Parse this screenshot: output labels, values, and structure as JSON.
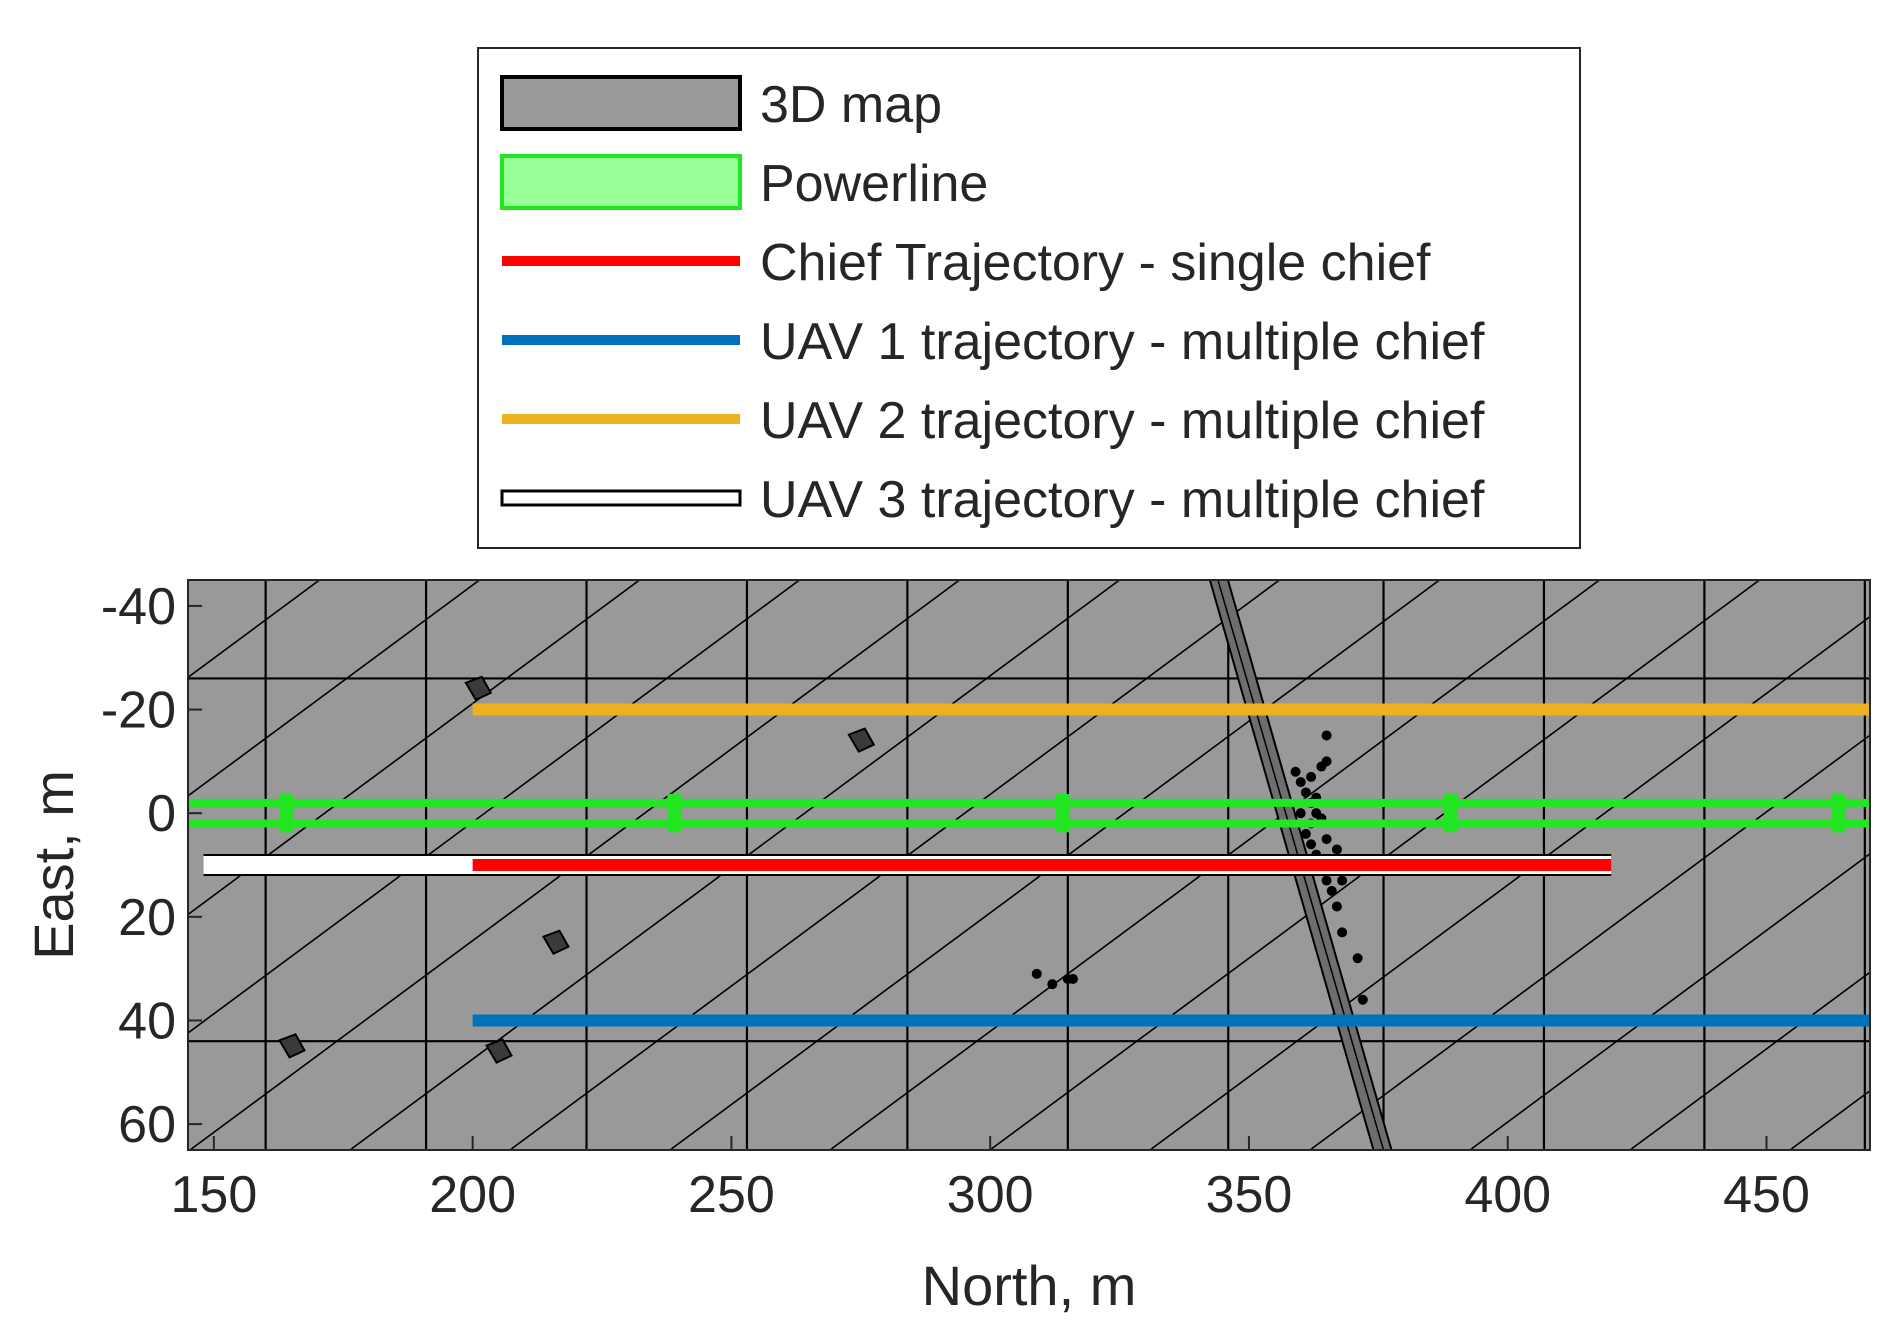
{
  "chart_data": {
    "type": "line",
    "title": "",
    "xlabel": "North, m",
    "ylabel": "East, m",
    "xlim": [
      145,
      470
    ],
    "ylim": [
      -45,
      65
    ],
    "y_reversed": true,
    "grid": false,
    "legend_position": "top-center, outside plot",
    "x_ticks": [
      "150",
      "200",
      "250",
      "300",
      "350",
      "400",
      "450"
    ],
    "y_ticks": [
      "-40",
      "-20",
      "0",
      "20",
      "40",
      "60"
    ],
    "x_tick_values": [
      150,
      200,
      250,
      300,
      350,
      400,
      450
    ],
    "y_tick_values": [
      -40,
      -20,
      0,
      20,
      40,
      60
    ],
    "colors": {
      "map_fill": "#999999",
      "map_edge": "#000000",
      "powerline": "#22e622",
      "powerline_fill": "#99ff99",
      "chief": "#ff0000",
      "uav1": "#0072bd",
      "uav2": "#edb120",
      "uav3": "#ffffff"
    },
    "legend": [
      {
        "label": "3D map",
        "kind": "patch",
        "color": "#999999",
        "edge": "#000000"
      },
      {
        "label": "Powerline",
        "kind": "patch",
        "color": "#99ff99",
        "edge": "#22e622"
      },
      {
        "label": "Chief Trajectory - single chief",
        "kind": "line",
        "color": "#ff0000"
      },
      {
        "label": "UAV 1 trajectory - multiple chief",
        "kind": "line",
        "color": "#0072bd"
      },
      {
        "label": "UAV 2 trajectory - multiple chief",
        "kind": "line",
        "color": "#edb120"
      },
      {
        "label": "UAV 3 trajectory - multiple chief",
        "kind": "outlined-line",
        "color": "#ffffff",
        "edge": "#000000"
      }
    ],
    "series": [
      {
        "name": "UAV 3 trajectory - multiple chief",
        "x": [
          148,
          420
        ],
        "y": [
          10,
          10
        ]
      },
      {
        "name": "Chief Trajectory - single chief",
        "x": [
          200,
          420
        ],
        "y": [
          10,
          10
        ]
      },
      {
        "name": "UAV 1 trajectory - multiple chief",
        "x": [
          200,
          470
        ],
        "y": [
          40,
          40
        ]
      },
      {
        "name": "UAV 2 trajectory - multiple chief",
        "x": [
          200,
          470
        ],
        "y": [
          -20,
          -20
        ]
      }
    ],
    "powerline": {
      "conductors_y": [
        -2,
        2
      ],
      "x_range": [
        145,
        470
      ],
      "pylons_x": [
        164,
        239,
        314,
        389,
        464
      ]
    },
    "map_grid": {
      "vertical_x": [
        160,
        191,
        222,
        253,
        284,
        315,
        346,
        376,
        407,
        438,
        469
      ],
      "horizontal_y": [
        -26,
        44
      ]
    },
    "map_features": {
      "road_strip": [
        {
          "x": 344,
          "y": -45
        },
        {
          "x": 376,
          "y": 65
        }
      ],
      "buildings": [
        {
          "x": 201,
          "y": -24
        },
        {
          "x": 216,
          "y": 25
        },
        {
          "x": 275,
          "y": -14
        },
        {
          "x": 165,
          "y": 45
        },
        {
          "x": 205,
          "y": 46
        }
      ],
      "scatter_points": [
        [
          309,
          31
        ],
        [
          312,
          33
        ],
        [
          315,
          32
        ],
        [
          316,
          32
        ],
        [
          359,
          -8
        ],
        [
          360,
          -6
        ],
        [
          361,
          -4
        ],
        [
          362,
          -2
        ],
        [
          363,
          0
        ],
        [
          362,
          2
        ],
        [
          361,
          4
        ],
        [
          362,
          6
        ],
        [
          363,
          8
        ],
        [
          364,
          -9
        ],
        [
          365,
          -10
        ],
        [
          364,
          1
        ],
        [
          363,
          -3
        ],
        [
          365,
          5
        ],
        [
          366,
          9
        ],
        [
          365,
          13
        ],
        [
          366,
          15
        ],
        [
          367,
          18
        ],
        [
          368,
          23
        ],
        [
          371,
          28
        ],
        [
          372,
          36
        ],
        [
          365,
          -15
        ],
        [
          367,
          7
        ],
        [
          368,
          13
        ],
        [
          364,
          11
        ],
        [
          362,
          -7
        ],
        [
          360,
          0
        ]
      ]
    }
  }
}
